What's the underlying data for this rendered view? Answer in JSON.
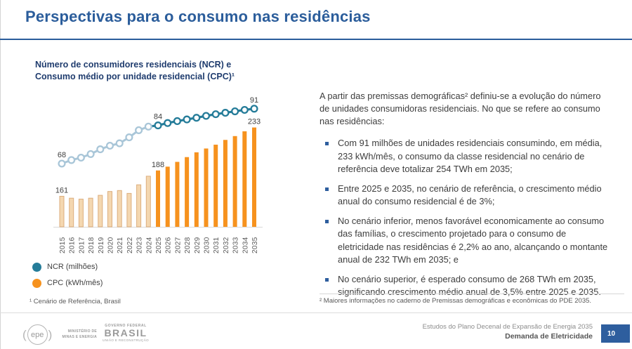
{
  "slide": {
    "title": "Perspectivas para o consumo nas residências"
  },
  "left_panel": {
    "chart_title_line1": "Número de consumidores residenciais (NCR) e",
    "chart_title_line2": "Consumo médio por unidade residencial (CPC)¹",
    "legend": [
      {
        "label": "NCR (milhões)",
        "color": "#257C99"
      },
      {
        "label": "CPC (kWh/mês)",
        "color": "#F6921E"
      }
    ],
    "footnote": "¹ Cenário de Referência, Brasil"
  },
  "chart_data": {
    "type": "combo line + bar",
    "title": "Número de consumidores residenciais (NCR) e Consumo médio por unidade residencial (CPC)",
    "categories": [
      "2015",
      "2016",
      "2017",
      "2018",
      "2019",
      "2020",
      "2021",
      "2022",
      "2023",
      "2024",
      "2025",
      "2026",
      "2027",
      "2028",
      "2029",
      "2030",
      "2031",
      "2032",
      "2033",
      "2034",
      "2035"
    ],
    "projection_start_index": 10,
    "series": [
      {
        "name": "NCR (milhões)",
        "type": "line",
        "marker": "open-circle",
        "values": [
          68,
          69.5,
          70.5,
          72,
          74,
          75.5,
          76.5,
          79,
          82,
          83.5,
          84,
          85,
          85.8,
          86.5,
          87.2,
          88,
          88.7,
          89.3,
          89.9,
          90.5,
          91
        ],
        "historical_color": "#A9C6D8",
        "projection_color": "#257C99"
      },
      {
        "name": "CPC (kWh/mês)",
        "type": "bar",
        "values": [
          161,
          159,
          158,
          159,
          162,
          166,
          167,
          164,
          173,
          182,
          188,
          192,
          197,
          202,
          207,
          211,
          215,
          220,
          224,
          229,
          233
        ],
        "historical_color": "#F4D7B0",
        "historical_border": "#DCAE7E",
        "projection_color": "#F6921E"
      }
    ],
    "data_labels": [
      {
        "series": 0,
        "category": "2015",
        "value": 68
      },
      {
        "series": 0,
        "category": "2025",
        "value": 84
      },
      {
        "series": 0,
        "category": "2035",
        "value": 91
      },
      {
        "series": 1,
        "category": "2015",
        "value": 161
      },
      {
        "series": 1,
        "category": "2025",
        "value": 188
      },
      {
        "series": 1,
        "category": "2035",
        "value": 233
      }
    ],
    "xlabel": "",
    "ylabel": "",
    "grid": false,
    "axes_visible": "baseline only",
    "legend_position": "bottom-left"
  },
  "right_panel": {
    "intro": "A partir das premissas demográficas² definiu-se a evolução do número de unidades consumidoras residenciais. No que se refere ao consumo nas residências:",
    "bullets": [
      "Com 91 milhões de unidades residenciais consumindo, em média, 233 kWh/mês, o consumo da classe residencial no cenário de referência deve totalizar 254 TWh em 2035;",
      "Entre 2025 e 2035, no cenário de referência, o crescimento médio anual do consumo residencial é de 3%;",
      "No cenário inferior, menos favorável economicamente ao consumo das famílias, o crescimento projetado para o consumo de eletricidade nas residências é 2,2% ao ano, alcançando o montante anual de 232 TWh em 2035; e",
      "No cenário superior, é esperado consumo de 268 TWh em 2035, significando crescimento médio anual de 3,5% entre 2025 e 2035."
    ],
    "footnote": "² Maiores informações no caderno de Premissas demográficas e econômicas do PDE 2035."
  },
  "footer": {
    "epe_logo": "epe",
    "ministry_line1": "MINISTÉRIO DE",
    "ministry_line2": "MINAS E ENERGIA",
    "gov_top": "GOVERNO FEDERAL",
    "gov_brand": "BRASIL",
    "gov_bottom": "UNIÃO E RECONSTRUÇÃO",
    "doc_title": "Estudos do Plano Decenal de Expansão de Energia 2035",
    "doc_subtitle": "Demanda de Eletricidade",
    "page_number": "10"
  },
  "colors": {
    "accent_blue": "#2B5D9B",
    "heading_navy": "#1F3C6E",
    "teal": "#257C99",
    "teal_light": "#A9C6D8",
    "orange": "#F6921E",
    "orange_light": "#F4D7B0",
    "page_box_blue": "#2E5E9E"
  }
}
